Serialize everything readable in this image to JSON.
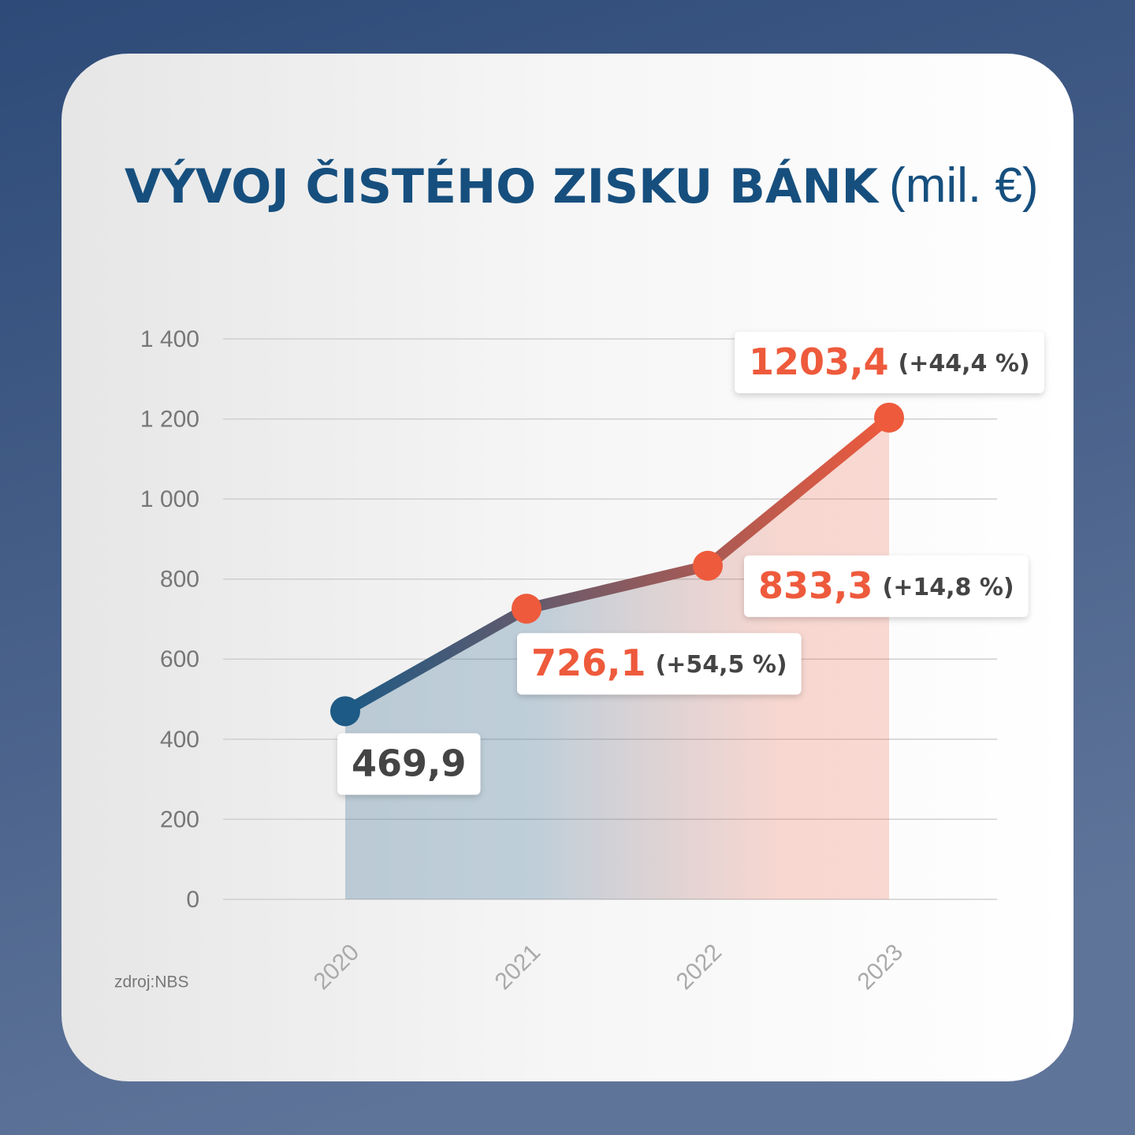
{
  "chart_data": {
    "type": "line",
    "title": "VÝVOJ ČISTÉHO ZISKU BÁNK",
    "subtitle": "(mil. €)",
    "source": "zdroj:NBS",
    "categories": [
      "2020",
      "2021",
      "2022",
      "2023"
    ],
    "values": [
      469.9,
      726.1,
      833.3,
      1203.4
    ],
    "value_labels": [
      "469,9",
      "726,1",
      "833,3",
      "1203,4"
    ],
    "change_labels": [
      null,
      "(+54,5 %)",
      "(+14,8 %)",
      "(+44,4 %)"
    ],
    "colors": [
      "#1d5a85",
      "#ee5a3c"
    ],
    "ylim": [
      0,
      1400
    ],
    "yticks": [
      0,
      200,
      400,
      600,
      800,
      {
        "value": 1000,
        "label": "1 000"
      },
      {
        "value": 1200,
        "label": "1 200"
      },
      {
        "value": 1400,
        "label": "1 400"
      }
    ],
    "grid": true
  }
}
